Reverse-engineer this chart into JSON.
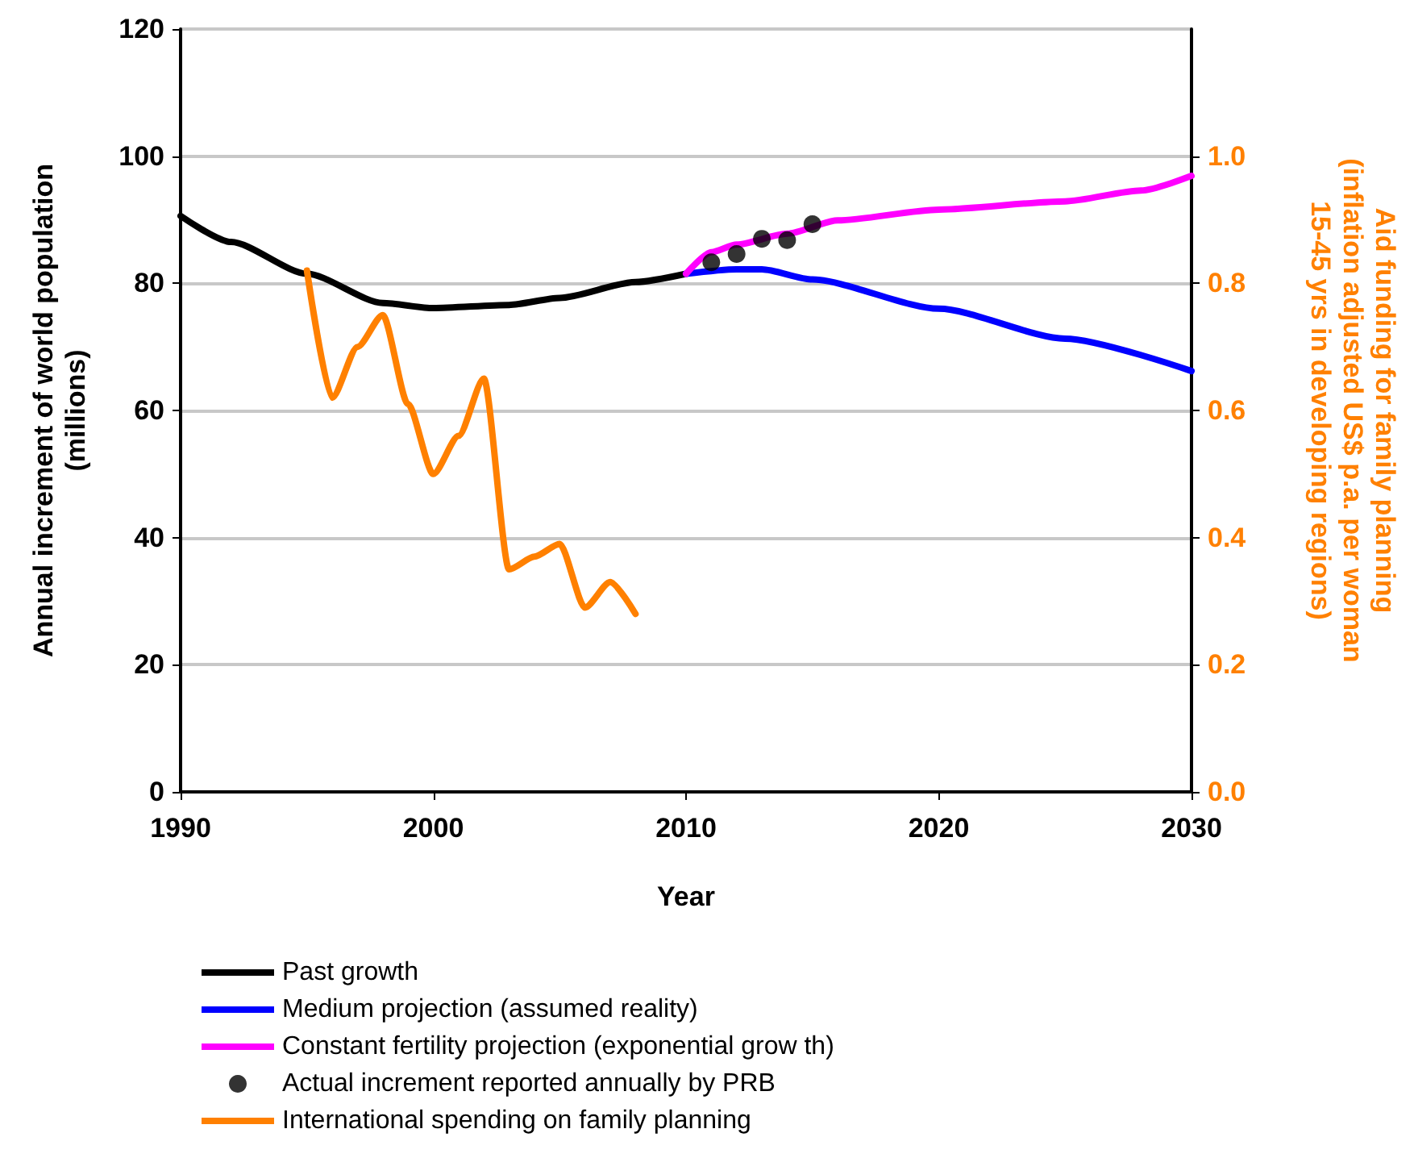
{
  "chart_data": {
    "type": "line",
    "xlabel": "Year",
    "ylabel": "Annual increment of world population\n(millions)",
    "y2label": "Aid funding for family planning\n(inflation adjusted US$ p.a. per woman\n15-45 yrs in developing regions)",
    "xlim": [
      1990,
      2030
    ],
    "xticks": [
      1990,
      2000,
      2010,
      2020,
      2030
    ],
    "ylim": [
      0,
      120
    ],
    "yticks": [
      0,
      20,
      40,
      60,
      80,
      100,
      120
    ],
    "y2lim": [
      0,
      1.2
    ],
    "y2ticks": [
      {
        "value": 0,
        "label": "0.0"
      },
      {
        "value": 0.2,
        "label": "0.2"
      },
      {
        "value": 0.4,
        "label": "0.4"
      },
      {
        "value": 0.6,
        "label": "0.6"
      },
      {
        "value": 0.8,
        "label": "0.8"
      },
      {
        "value": 1,
        "label": "1.0"
      }
    ],
    "grid": "y",
    "legend": "bottom",
    "marker": "none",
    "line_style": "solid",
    "series": [
      {
        "name": "Past growth",
        "color": "#000000",
        "x": [
          1990,
          1992,
          1995,
          1998,
          2000,
          2003,
          2005,
          2008,
          2010
        ],
        "values": [
          90.6,
          86.5,
          81.5,
          76.9,
          76.1,
          76.6,
          77.7,
          80.2,
          81.5
        ]
      },
      {
        "name": "Medium projection (assumed reality)",
        "color": "#0000ff",
        "x": [
          2010,
          2012,
          2013,
          2015,
          2020,
          2025,
          2030
        ],
        "values": [
          81.5,
          82.2,
          82.2,
          80.6,
          76.0,
          71.3,
          66.2
        ]
      },
      {
        "name": "Constant fertility projection (exponential grow th)",
        "color": "#ff00ff",
        "x": [
          2010,
          2011,
          2012,
          2014,
          2016,
          2020,
          2025,
          2028,
          2030
        ],
        "values": [
          81.5,
          84.9,
          86.1,
          87.8,
          89.9,
          91.6,
          92.9,
          94.6,
          96.9
        ]
      },
      {
        "name": "Actual increment reported annually by PRB",
        "type": "scatter",
        "marker": "circle",
        "color": "#000000",
        "x": [
          2011,
          2012,
          2013,
          2014,
          2015
        ],
        "values": [
          83.3,
          84.6,
          87.0,
          86.8,
          89.3
        ]
      },
      {
        "name": "International spending on family planning",
        "color": "#ff8000",
        "axis": "y2",
        "x": [
          1995,
          1996,
          1997,
          1998,
          1999,
          2000,
          2001,
          2002,
          2003,
          2004,
          2005,
          2006,
          2007,
          2008
        ],
        "values": [
          0.82,
          0.62,
          0.7,
          0.75,
          0.61,
          0.5,
          0.56,
          0.65,
          0.35,
          0.37,
          0.39,
          0.29,
          0.33,
          0.28
        ]
      }
    ]
  }
}
